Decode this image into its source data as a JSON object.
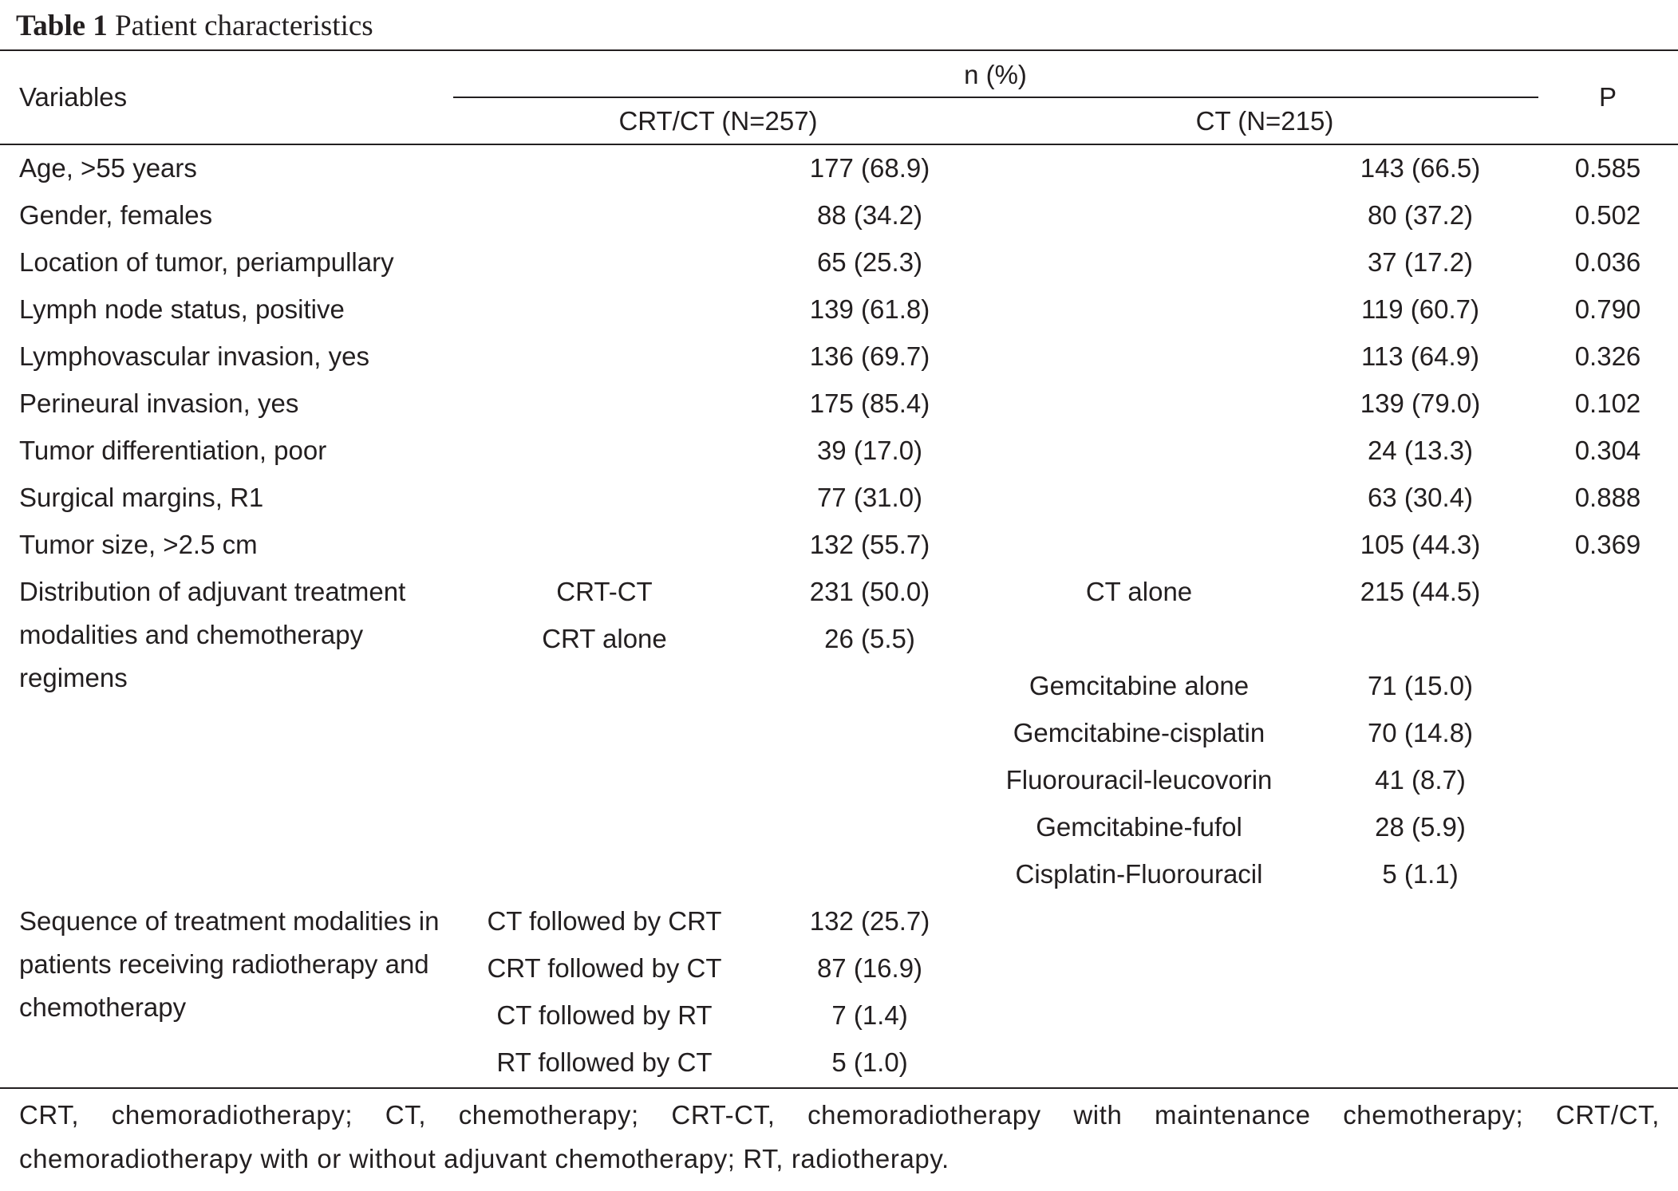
{
  "table": {
    "title_label": "Table 1",
    "title_text": "Patient characteristics",
    "headers": {
      "variables": "Variables",
      "group": "n (%)",
      "crt_ct": "CRT/CT (N=257)",
      "ct": "CT (N=215)",
      "p": "P"
    },
    "rows": [
      {
        "variable": "Age, >55 years",
        "crt": "177 (68.9)",
        "ct": "143 (66.5)",
        "p": "0.585"
      },
      {
        "variable": "Gender, females",
        "crt": "88 (34.2)",
        "ct": "80 (37.2)",
        "p": "0.502"
      },
      {
        "variable": "Location of tumor, periampullary",
        "crt": "65 (25.3)",
        "ct": "37 (17.2)",
        "p": "0.036"
      },
      {
        "variable": "Lymph node status, positive",
        "crt": "139 (61.8)",
        "ct": "119 (60.7)",
        "p": "0.790"
      },
      {
        "variable": "Lymphovascular invasion, yes",
        "crt": "136 (69.7)",
        "ct": "113 (64.9)",
        "p": "0.326"
      },
      {
        "variable": "Perineural invasion, yes",
        "crt": "175 (85.4)",
        "ct": "139 (79.0)",
        "p": "0.102"
      },
      {
        "variable": "Tumor differentiation, poor",
        "crt": "39 (17.0)",
        "ct": "24 (13.3)",
        "p": "0.304"
      },
      {
        "variable": "Surgical margins, R1",
        "crt": "77 (31.0)",
        "ct": "63 (30.4)",
        "p": "0.888"
      },
      {
        "variable": "Tumor size, >2.5 cm",
        "crt": "132 (55.7)",
        "ct": "105 (44.3)",
        "p": "0.369"
      }
    ],
    "distribution": {
      "variable": "Distribution of adjuvant treatment modalities and chemotherapy regimens",
      "crt_items": [
        {
          "label": "CRT-CT",
          "value": "231 (50.0)"
        },
        {
          "label": "CRT alone",
          "value": "26 (5.5)"
        }
      ],
      "ct_items": [
        {
          "label": "CT alone",
          "value": "215 (44.5)"
        },
        {
          "label": "",
          "value": ""
        },
        {
          "label": "Gemcitabine alone",
          "value": "71 (15.0)"
        },
        {
          "label": "Gemcitabine-cisplatin",
          "value": "70 (14.8)"
        },
        {
          "label": "Fluorouracil-leucovorin",
          "value": "41 (8.7)"
        },
        {
          "label": "Gemcitabine-fufol",
          "value": "28 (5.9)"
        },
        {
          "label": "Cisplatin-Fluorouracil",
          "value": "5 (1.1)"
        }
      ]
    },
    "sequence": {
      "variable": "Sequence of treatment modalities in patients receiving radiotherapy and chemotherapy",
      "items": [
        {
          "label": "CT followed by CRT",
          "value": "132 (25.7)"
        },
        {
          "label": "CRT followed by CT",
          "value": "87 (16.9)"
        },
        {
          "label": "CT followed by RT",
          "value": "7 (1.4)"
        },
        {
          "label": "RT followed by CT",
          "value": "5 (1.0)"
        }
      ]
    },
    "footnote": "CRT, chemoradiotherapy; CT, chemotherapy; CRT-CT, chemoradiotherapy with maintenance chemotherapy; CRT/CT, chemoradiotherapy with or without adjuvant chemotherapy; RT, radiotherapy."
  }
}
